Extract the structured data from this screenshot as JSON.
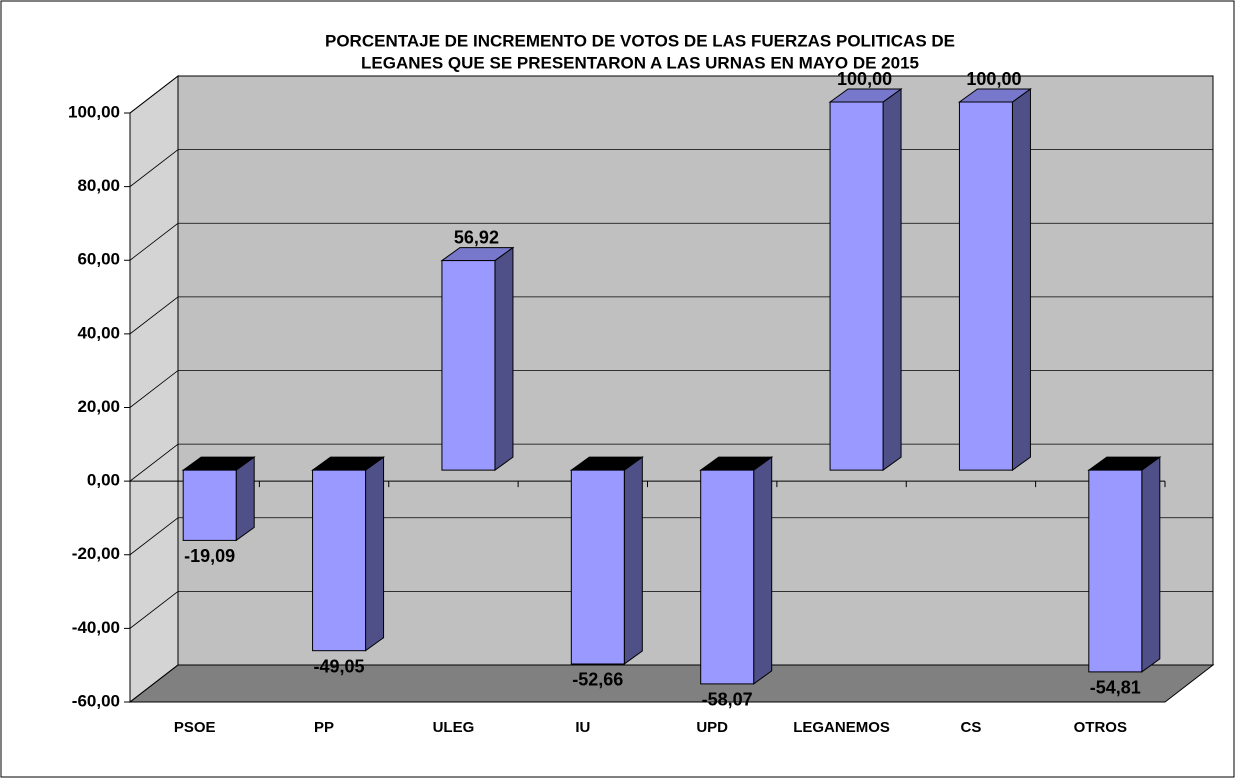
{
  "chart_data": {
    "type": "bar3d",
    "title": [
      "PORCENTAJE DE INCREMENTO DE VOTOS DE LAS FUERZAS POLITICAS DE",
      "LEGANES QUE SE PRESENTARON A LAS URNAS EN MAYO DE 2015"
    ],
    "categories": [
      "PSOE",
      "PP",
      "ULEG",
      "IU",
      "UPD",
      "LEGANEMOS",
      "CS",
      "OTROS"
    ],
    "values": [
      -19.09,
      -49.05,
      56.92,
      -52.66,
      -58.07,
      100,
      100,
      -54.81
    ],
    "value_labels": [
      "-19,09",
      "-49,05",
      "56,92",
      "-52,66",
      "-58,07",
      "100,00",
      "100,00",
      "-54,81"
    ],
    "color": "#9999ff",
    "ylim": [
      -60,
      100
    ],
    "yticks": [
      {
        "value": -60,
        "label": "-60,00"
      },
      {
        "value": -40,
        "label": "-40,00"
      },
      {
        "value": -20,
        "label": "-20,00"
      },
      {
        "value": 0,
        "label": "0,00"
      },
      {
        "value": 20,
        "label": "20,00"
      },
      {
        "value": 40,
        "label": "40,00"
      },
      {
        "value": 60,
        "label": "60,00"
      },
      {
        "value": 80,
        "label": "80,00"
      },
      {
        "value": 100,
        "label": "100,00"
      }
    ],
    "grid": true
  }
}
